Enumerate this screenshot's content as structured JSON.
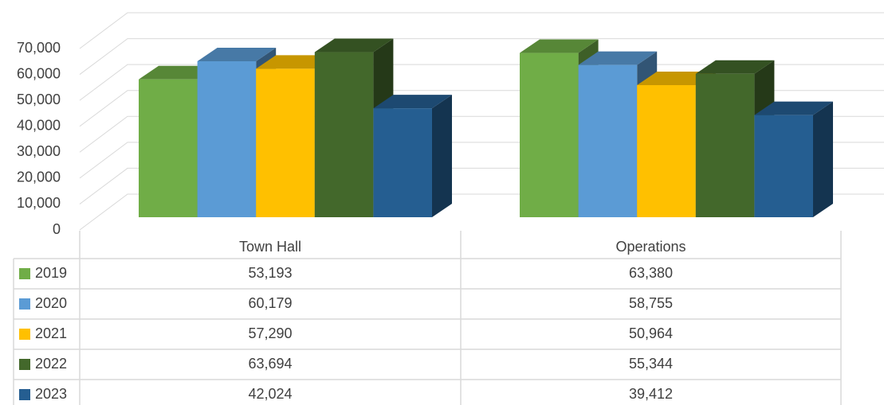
{
  "chart_data": {
    "type": "bar3d",
    "categories": [
      "Town Hall",
      "Operations"
    ],
    "series": [
      {
        "name": "2019",
        "color": "#70ad47",
        "values": [
          53193,
          63380
        ],
        "value_labels": [
          "53,193",
          "63,380"
        ]
      },
      {
        "name": "2020",
        "color": "#5b9bd5",
        "values": [
          60179,
          58755
        ],
        "value_labels": [
          "60,179",
          "58,755"
        ]
      },
      {
        "name": "2021",
        "color": "#ffc000",
        "values": [
          57290,
          50964
        ],
        "value_labels": [
          "57,290",
          "50,964"
        ]
      },
      {
        "name": "2022",
        "color": "#43682b",
        "values": [
          63694,
          55344
        ],
        "value_labels": [
          "63,694",
          "55,344"
        ]
      },
      {
        "name": "2023",
        "color": "#255e91",
        "values": [
          42024,
          39412
        ],
        "value_labels": [
          "42,024",
          "39,412"
        ]
      }
    ],
    "ylim": [
      0,
      70000
    ],
    "yticks": [
      0,
      {
        "value": 10000,
        "label": "10,000"
      },
      {
        "value": 20000,
        "label": "20,000"
      },
      {
        "value": 30000,
        "label": "30,000"
      },
      {
        "value": 40000,
        "label": "40,000"
      },
      {
        "value": 50000,
        "label": "50,000"
      },
      {
        "value": 60000,
        "label": "60,000"
      },
      {
        "value": 70000,
        "label": "70,000"
      }
    ],
    "grid": true,
    "data_table": true
  }
}
